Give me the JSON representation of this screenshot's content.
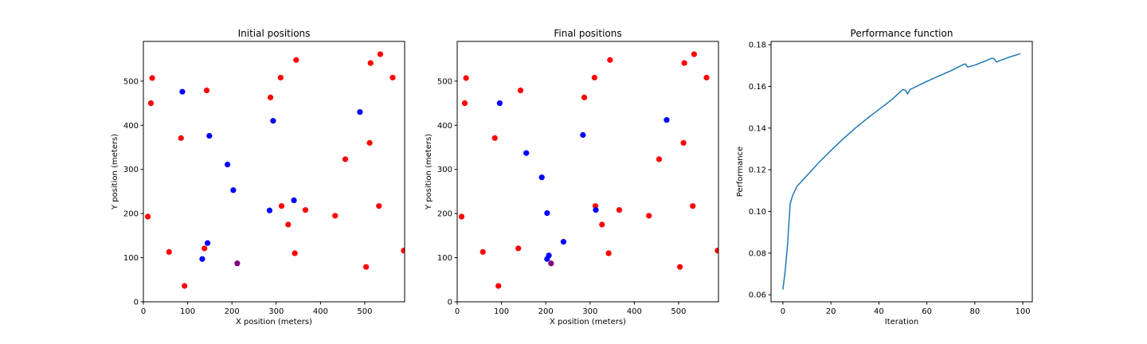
{
  "figure": {
    "background": "#ffffff"
  },
  "colors": {
    "red": "#ff0000",
    "blue": "#0000ff",
    "purple": "#800080",
    "line": "#1f77b4"
  },
  "chart_data": [
    {
      "type": "scatter",
      "title": "Initial positions",
      "xlabel": "X position (meters)",
      "ylabel": "Y position (meters)",
      "xlim": [
        0,
        590
      ],
      "ylim": [
        0,
        590
      ],
      "xticks": [
        0,
        100,
        200,
        300,
        400,
        500
      ],
      "yticks": [
        0,
        100,
        200,
        300,
        400,
        500
      ],
      "series": [
        {
          "color": "red",
          "points": [
            [
              20,
              507
            ],
            [
              17,
              450
            ],
            [
              10,
              193
            ],
            [
              58,
              113
            ],
            [
              93,
              36
            ],
            [
              85,
              371
            ],
            [
              143,
              479
            ],
            [
              138,
              121
            ],
            [
              287,
              463
            ],
            [
              310,
              508
            ],
            [
              345,
              548
            ],
            [
              312,
              217
            ],
            [
              327,
              175
            ],
            [
              342,
              110
            ],
            [
              366,
              208
            ],
            [
              433,
              195
            ],
            [
              456,
              323
            ],
            [
              503,
              79
            ],
            [
              511,
              360
            ],
            [
              513,
              541
            ],
            [
              535,
              561
            ],
            [
              532,
              217
            ],
            [
              563,
              508
            ],
            [
              588,
              116
            ]
          ]
        },
        {
          "color": "blue",
          "points": [
            [
              88,
              476
            ],
            [
              149,
              376
            ],
            [
              190,
              311
            ],
            [
              203,
              253
            ],
            [
              133,
              97
            ],
            [
              145,
              133
            ],
            [
              293,
              410
            ],
            [
              285,
              207
            ],
            [
              340,
              230
            ],
            [
              489,
              430
            ]
          ]
        },
        {
          "color": "purple",
          "points": [
            [
              212,
              87
            ]
          ]
        }
      ]
    },
    {
      "type": "scatter",
      "title": "Final positions",
      "xlabel": "X position (meters)",
      "ylabel": "Y position (meters)",
      "xlim": [
        0,
        590
      ],
      "ylim": [
        0,
        590
      ],
      "xticks": [
        0,
        100,
        200,
        300,
        400,
        500
      ],
      "yticks": [
        0,
        100,
        200,
        300,
        400,
        500
      ],
      "series": [
        {
          "color": "red",
          "points": [
            [
              20,
              507
            ],
            [
              17,
              450
            ],
            [
              10,
              193
            ],
            [
              58,
              113
            ],
            [
              93,
              36
            ],
            [
              85,
              371
            ],
            [
              143,
              479
            ],
            [
              138,
              121
            ],
            [
              287,
              463
            ],
            [
              310,
              508
            ],
            [
              345,
              548
            ],
            [
              312,
              217
            ],
            [
              327,
              175
            ],
            [
              342,
              110
            ],
            [
              366,
              208
            ],
            [
              433,
              195
            ],
            [
              456,
              323
            ],
            [
              503,
              79
            ],
            [
              511,
              360
            ],
            [
              513,
              541
            ],
            [
              535,
              561
            ],
            [
              532,
              217
            ],
            [
              563,
              508
            ],
            [
              588,
              116
            ]
          ]
        },
        {
          "color": "blue",
          "points": [
            [
              96,
              450
            ],
            [
              156,
              337
            ],
            [
              191,
              282
            ],
            [
              203,
              201
            ],
            [
              203,
              97
            ],
            [
              207,
              105
            ],
            [
              240,
              136
            ],
            [
              284,
              378
            ],
            [
              313,
              208
            ],
            [
              473,
              412
            ]
          ]
        },
        {
          "color": "purple",
          "points": [
            [
              212,
              87
            ]
          ]
        }
      ]
    },
    {
      "type": "line",
      "title": "Performance function",
      "xlabel": "Iteration",
      "ylabel": "Performance",
      "xlim": [
        -4.95,
        103.95
      ],
      "ylim": [
        0.0566,
        0.1816
      ],
      "xticks": [
        0,
        20,
        40,
        60,
        80,
        100
      ],
      "yticks": [
        0.06,
        0.08,
        0.1,
        0.12,
        0.14,
        0.16,
        0.18
      ],
      "ytick_labels": [
        "0.06",
        "0.08",
        "0.10",
        "0.12",
        "0.14",
        "0.16",
        "0.18"
      ],
      "series": [
        {
          "color": "line",
          "points": [
            [
              0,
              0.0625
            ],
            [
              1,
              0.072
            ],
            [
              2,
              0.085
            ],
            [
              3,
              0.1035
            ],
            [
              4,
              0.1075
            ],
            [
              5,
              0.11
            ],
            [
              6,
              0.1122
            ],
            [
              10,
              0.1172
            ],
            [
              15,
              0.1235
            ],
            [
              20,
              0.1292
            ],
            [
              25,
              0.1347
            ],
            [
              30,
              0.1398
            ],
            [
              35,
              0.1445
            ],
            [
              40,
              0.1489
            ],
            [
              45,
              0.1533
            ],
            [
              49,
              0.1575
            ],
            [
              50,
              0.1585
            ],
            [
              51,
              0.1582
            ],
            [
              52,
              0.1565
            ],
            [
              53,
              0.1585
            ],
            [
              60,
              0.1624
            ],
            [
              65,
              0.165
            ],
            [
              70,
              0.1675
            ],
            [
              75,
              0.1704
            ],
            [
              76,
              0.1708
            ],
            [
              77,
              0.1693
            ],
            [
              80,
              0.1702
            ],
            [
              85,
              0.1725
            ],
            [
              87,
              0.1735
            ],
            [
              88,
              0.1733
            ],
            [
              89,
              0.1717
            ],
            [
              90,
              0.1722
            ],
            [
              95,
              0.1743
            ],
            [
              99,
              0.1757
            ]
          ]
        }
      ]
    }
  ]
}
